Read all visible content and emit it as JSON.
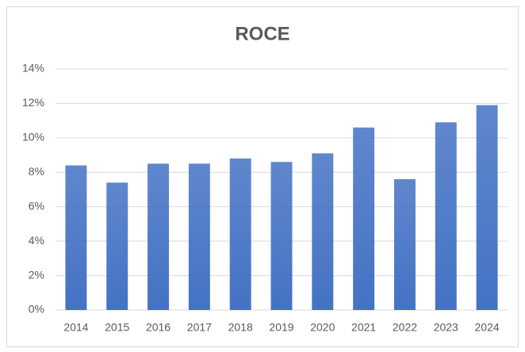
{
  "chart_data": {
    "type": "bar",
    "title": "ROCE",
    "categories": [
      "2014",
      "2015",
      "2016",
      "2017",
      "2018",
      "2019",
      "2020",
      "2021",
      "2022",
      "2023",
      "2024"
    ],
    "values": [
      8.4,
      7.4,
      8.5,
      8.5,
      8.8,
      8.6,
      9.1,
      10.6,
      7.6,
      10.9,
      11.9
    ],
    "color": "#4472c4",
    "ylim": [
      0,
      14
    ],
    "yticks": [
      {
        "value": 0,
        "label": "0%"
      },
      {
        "value": 2,
        "label": "2%"
      },
      {
        "value": 4,
        "label": "4%"
      },
      {
        "value": 6,
        "label": "6%"
      },
      {
        "value": 8,
        "label": "8%"
      },
      {
        "value": 10,
        "label": "10%"
      },
      {
        "value": 12,
        "label": "12%"
      },
      {
        "value": 14,
        "label": "14%"
      }
    ],
    "grid": true
  }
}
